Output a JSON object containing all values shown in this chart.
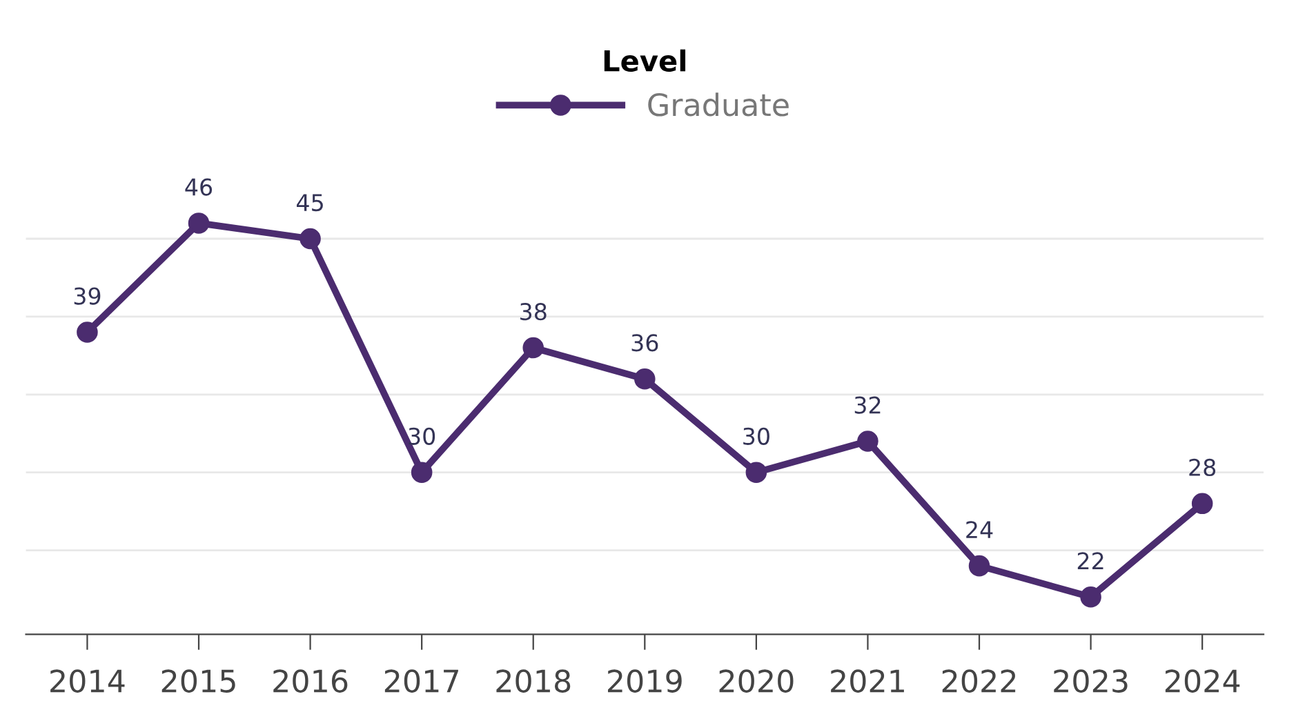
{
  "chart_data": {
    "type": "line",
    "legend_title": "Level",
    "legend": "top",
    "categories": [
      "2014",
      "2015",
      "2016",
      "2017",
      "2018",
      "2019",
      "2020",
      "2021",
      "2022",
      "2023",
      "2024"
    ],
    "series": [
      {
        "name": "Graduate",
        "color": "#4b2c6f",
        "values": [
          39,
          46,
          45,
          30,
          38,
          36,
          30,
          32,
          24,
          22,
          28
        ]
      }
    ],
    "data_labels": true,
    "marker": "circle",
    "line_style": "solid",
    "grid": "y",
    "tick_labels": "x",
    "yticks": [
      {
        "value": 25,
        "label": null
      },
      {
        "value": 30,
        "label": null
      },
      {
        "value": 35,
        "label": null
      },
      {
        "value": 40,
        "label": null
      },
      {
        "value": 45,
        "label": null
      }
    ]
  }
}
